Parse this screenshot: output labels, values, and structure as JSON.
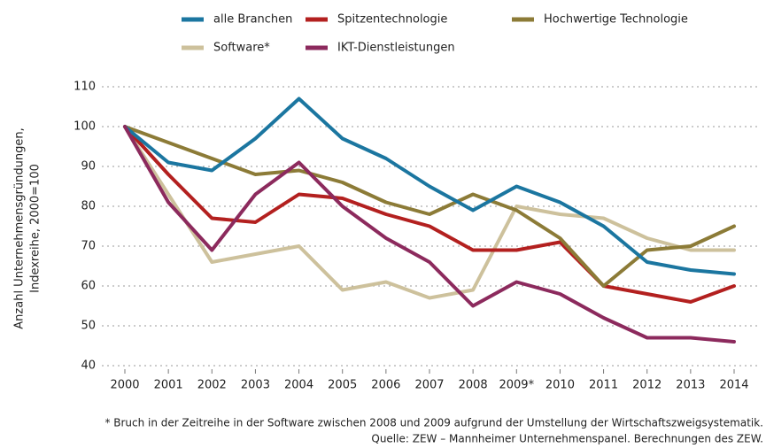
{
  "chart_data": {
    "type": "line",
    "y_label": [
      "Anzahl Unternehmensgründungen,",
      "Indexreihe, 2000=100"
    ],
    "categories": [
      "2000",
      "2001",
      "2002",
      "2003",
      "2004",
      "2005",
      "2006",
      "2007",
      "2008",
      "2009*",
      "2010",
      "2011",
      "2012",
      "2013",
      "2014"
    ],
    "series": [
      {
        "name": "alle Branchen",
        "color": "#1b76a0",
        "values": [
          100,
          91,
          89,
          97,
          107,
          97,
          92,
          85,
          79,
          85,
          81,
          75,
          66,
          64,
          63
        ]
      },
      {
        "name": "Spitzentechnologie",
        "color": "#b3201f",
        "values": [
          100,
          88,
          77,
          76,
          83,
          82,
          78,
          75,
          69,
          69,
          71,
          60,
          58,
          56,
          60
        ]
      },
      {
        "name": "Hochwertige Technologie",
        "color": "#8c7b37",
        "values": [
          100,
          96,
          92,
          88,
          89,
          86,
          81,
          78,
          83,
          79,
          72,
          60,
          69,
          70,
          75
        ]
      },
      {
        "name": "Software*",
        "color": "#cdc19c",
        "values": [
          100,
          83,
          66,
          68,
          70,
          59,
          61,
          57,
          59,
          80,
          78,
          77,
          72,
          69,
          69
        ]
      },
      {
        "name": "IKT-Dienstleistungen",
        "color": "#8c2a5d",
        "values": [
          100,
          81,
          69,
          83,
          91,
          80,
          72,
          66,
          55,
          61,
          58,
          52,
          47,
          47,
          46
        ]
      }
    ],
    "ylim": [
      40,
      110
    ],
    "yticks": [
      40,
      50,
      60,
      70,
      80,
      90,
      100,
      110
    ],
    "grid": true,
    "legend": "top",
    "notes": [
      "* Bruch in der Zeitreihe in der Software zwischen 2008 und 2009 aufgrund der Umstellung der Wirtschaftszweigsystematik.",
      "Quelle: ZEW – Mannheimer Unternehmenspanel. Berechnungen des ZEW."
    ]
  }
}
